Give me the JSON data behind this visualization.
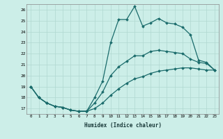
{
  "xlabel": "Humidex (Indice chaleur)",
  "bg_color": "#cceee8",
  "grid_color": "#b0d8d0",
  "line_color": "#1a6b6b",
  "xlim": [
    -0.5,
    23.5
  ],
  "ylim": [
    16.5,
    26.5
  ],
  "yticks": [
    17,
    18,
    19,
    20,
    21,
    22,
    23,
    24,
    25,
    26
  ],
  "xticks": [
    0,
    1,
    2,
    3,
    4,
    5,
    6,
    7,
    8,
    9,
    10,
    11,
    12,
    13,
    14,
    15,
    16,
    17,
    18,
    19,
    20,
    21,
    22,
    23
  ],
  "line1_x": [
    0,
    1,
    2,
    3,
    4,
    5,
    6,
    7,
    8,
    9,
    10,
    11,
    12,
    13,
    14,
    15,
    16,
    17,
    18,
    19,
    20,
    21,
    22,
    23
  ],
  "line1_y": [
    19,
    18,
    17.5,
    17.2,
    17.1,
    16.85,
    16.75,
    16.75,
    18.0,
    19.5,
    23.0,
    25.1,
    25.1,
    26.3,
    24.5,
    24.8,
    25.2,
    24.8,
    24.7,
    24.4,
    23.7,
    21.4,
    21.2,
    20.5
  ],
  "line2_x": [
    0,
    1,
    2,
    3,
    4,
    5,
    6,
    7,
    8,
    9,
    10,
    11,
    12,
    13,
    14,
    15,
    16,
    17,
    18,
    19,
    20,
    21,
    22,
    23
  ],
  "line2_y": [
    19,
    18,
    17.5,
    17.2,
    17.1,
    16.85,
    16.75,
    16.75,
    17.5,
    18.5,
    20.0,
    20.8,
    21.3,
    21.8,
    21.8,
    22.2,
    22.3,
    22.2,
    22.1,
    22.0,
    21.5,
    21.2,
    21.1,
    20.5
  ],
  "line3_x": [
    0,
    1,
    2,
    3,
    4,
    5,
    6,
    7,
    8,
    9,
    10,
    11,
    12,
    13,
    14,
    15,
    16,
    17,
    18,
    19,
    20,
    21,
    22,
    23
  ],
  "line3_y": [
    19,
    18,
    17.5,
    17.2,
    17.1,
    16.85,
    16.75,
    16.75,
    17.0,
    17.5,
    18.2,
    18.8,
    19.3,
    19.7,
    19.9,
    20.2,
    20.4,
    20.5,
    20.6,
    20.7,
    20.7,
    20.6,
    20.5,
    20.5
  ]
}
